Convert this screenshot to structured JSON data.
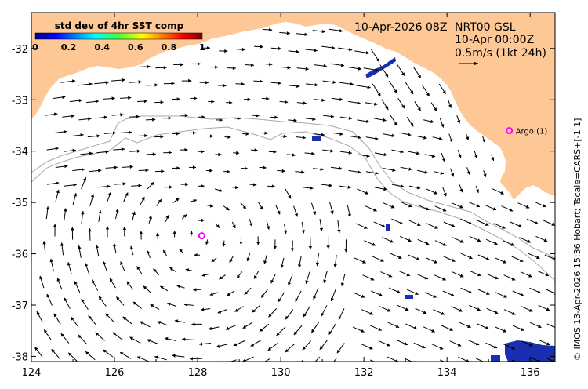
{
  "map": {
    "date_label": "10-Apr-2026 08Z",
    "product_label": "NRT00 GSL",
    "product_time": "10-Apr 00:00Z",
    "scale_label": "0.5m/s (1kt 24h)",
    "credit": "© IMOS 13-Apr-2026 15:36 Hobart; Tscale=CARS+[-1 1]",
    "colorbar": {
      "title": "std dev of 4hr SST comp",
      "ticks": [
        "0",
        "0.2",
        "0.4",
        "0.6",
        "0.8",
        "1"
      ]
    },
    "x_ticks": [
      "124",
      "126",
      "128",
      "130",
      "132",
      "134",
      "136"
    ],
    "y_ticks": [
      "-32",
      "-33",
      "-34",
      "-35",
      "-36",
      "-37",
      "-38"
    ],
    "lon_range": [
      124,
      136.6
    ],
    "lat_range": [
      -38.1,
      -31.3
    ],
    "argo_label": "Argo (1)",
    "argo_float": {
      "lon": 135.5,
      "lat": -33.6
    },
    "drifter": {
      "lon": 128.1,
      "lat": -35.65
    },
    "colors": {
      "land": "#fdc896",
      "isobath": "#a8a8a8",
      "marker": "#ff00ff",
      "sst_patch": "#1a2fb0"
    }
  }
}
